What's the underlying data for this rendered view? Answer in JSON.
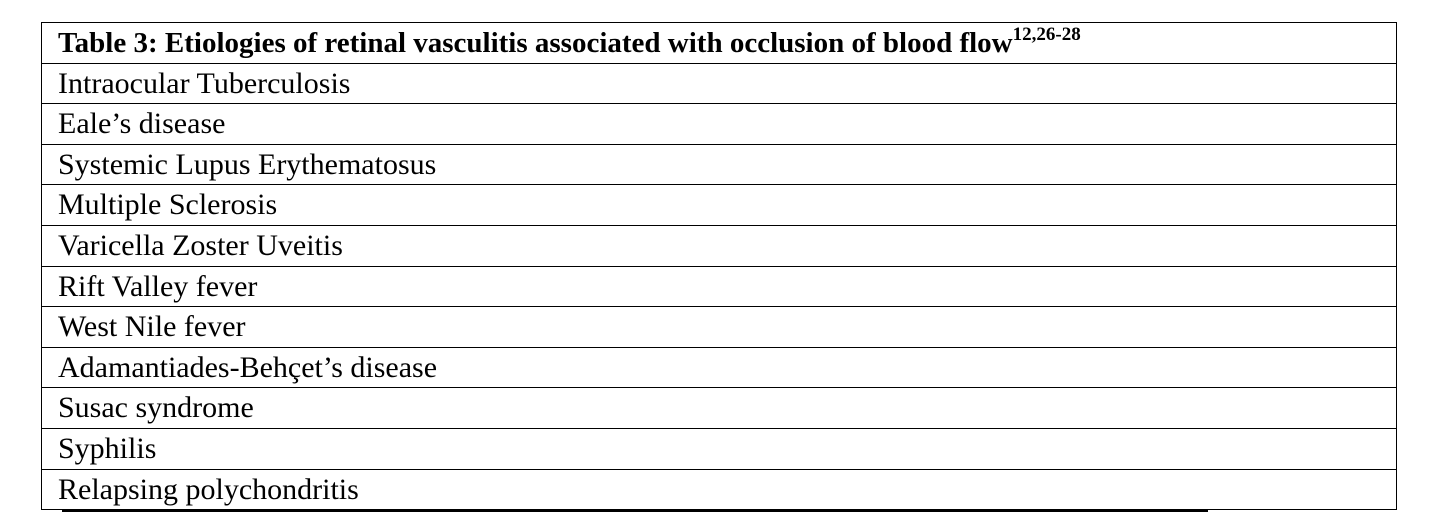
{
  "table": {
    "title": "Table 3: Etiologies of retinal vasculitis associated with occlusion of blood flow",
    "title_superscript": "12,26-28",
    "rows": [
      "Intraocular Tuberculosis",
      "Eale’s disease",
      "Systemic Lupus Erythematosus",
      "Multiple Sclerosis",
      "Varicella Zoster Uveitis",
      "Rift Valley fever",
      "West Nile fever",
      "Adamantiades-Behçet’s disease",
      "Susac syndrome",
      "Syphilis",
      "Relapsing polychondritis"
    ]
  }
}
